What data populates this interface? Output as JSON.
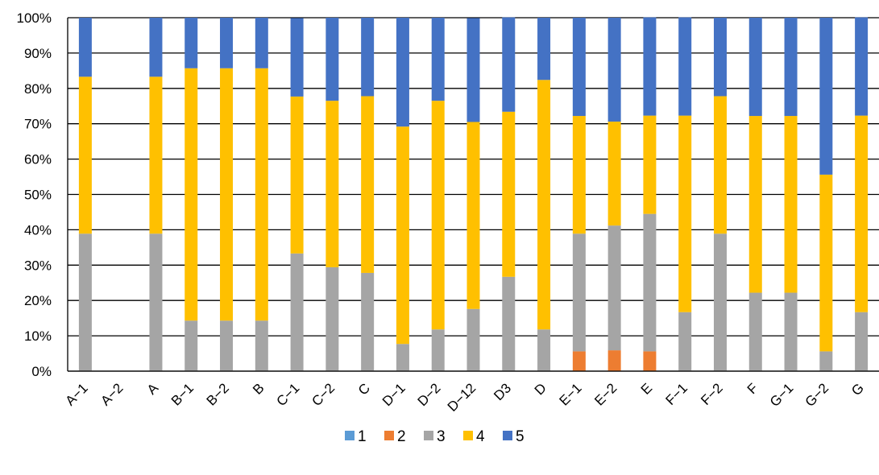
{
  "chart_data": {
    "type": "bar",
    "stacked": true,
    "normalized": true,
    "categories": [
      "A−1",
      "A−2",
      "A",
      "B−1",
      "B−2",
      "B",
      "C−1",
      "C−2",
      "C",
      "D−1",
      "D−2",
      "D−12",
      "D3",
      "D",
      "E−1",
      "E−2",
      "E",
      "F−1",
      "F−2",
      "F",
      "G−1",
      "G−2",
      "G"
    ],
    "series": [
      {
        "name": "1",
        "color": "#5B9BD5",
        "values": [
          0,
          0,
          0,
          0,
          0,
          0,
          0,
          0,
          0,
          0,
          0,
          0,
          0,
          0,
          0,
          0,
          0,
          0,
          0,
          0,
          0,
          0,
          0
        ]
      },
      {
        "name": "2",
        "color": "#ED7D31",
        "values": [
          0,
          0,
          0,
          0,
          0,
          0,
          0,
          0,
          0,
          0,
          0,
          0,
          0,
          0,
          5.6,
          5.9,
          5.6,
          0,
          0,
          0,
          0,
          0,
          0
        ]
      },
      {
        "name": "3",
        "color": "#A5A5A5",
        "values": [
          38.9,
          0,
          38.9,
          14.3,
          14.3,
          14.3,
          33.3,
          29.4,
          27.8,
          7.7,
          11.8,
          17.6,
          26.7,
          11.8,
          33.3,
          35.3,
          38.9,
          16.7,
          38.9,
          22.2,
          22.2,
          5.6,
          16.7
        ]
      },
      {
        "name": "4",
        "color": "#FFC000",
        "values": [
          44.4,
          0,
          44.4,
          71.4,
          71.4,
          71.4,
          44.4,
          47.1,
          50.0,
          61.5,
          64.7,
          52.9,
          46.7,
          70.6,
          33.3,
          29.4,
          27.8,
          55.6,
          38.9,
          50.0,
          50.0,
          50.0,
          55.6
        ]
      },
      {
        "name": "5",
        "color": "#4472C4",
        "values": [
          16.7,
          0,
          16.7,
          14.3,
          14.3,
          14.3,
          22.2,
          23.5,
          22.2,
          30.8,
          23.5,
          29.4,
          26.7,
          17.6,
          27.8,
          29.4,
          27.8,
          27.8,
          22.2,
          27.8,
          27.8,
          44.4,
          27.8
        ]
      }
    ],
    "ylim": [
      0,
      100
    ],
    "yticks": [
      "0%",
      "10%",
      "20%",
      "30%",
      "40%",
      "50%",
      "60%",
      "70%",
      "80%",
      "90%",
      "100%"
    ],
    "grid": true,
    "legend_position": "bottom"
  }
}
